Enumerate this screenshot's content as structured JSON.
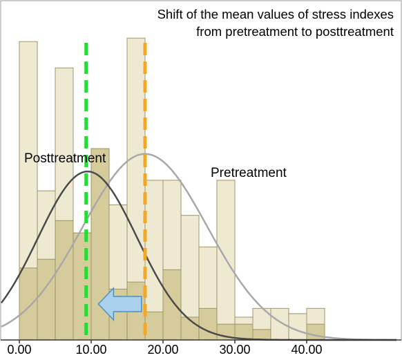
{
  "chart_data": {
    "type": "bar",
    "title_lines": [
      "Shift of the mean values of stress indexes",
      "from pretreatment to posttreatment"
    ],
    "xlabel": "",
    "ylabel": "",
    "x_tick_labels": [
      "0.00",
      "10.00",
      "20.00",
      "30.00",
      "40.00"
    ],
    "x_ticks": [
      0,
      10,
      20,
      30,
      40
    ],
    "xlim": [
      -2.5,
      52.5
    ],
    "ylim": [
      0,
      18
    ],
    "bin_width": 2.5,
    "bin_starts": [
      0,
      2.5,
      5,
      7.5,
      10,
      12.5,
      15,
      17.5,
      20,
      22.5,
      25,
      27.5,
      30,
      32.5,
      35,
      37.5,
      40
    ],
    "series": [
      {
        "name": "Pretreatment",
        "values": [
          17,
          8.5,
          15.5,
          6.1,
          10.9,
          7.7,
          17.2,
          9.1,
          9.1,
          7.1,
          5.3,
          9.1,
          1.3,
          1.8,
          1.8,
          1.5,
          1.8
        ],
        "mean": 17.5,
        "mean_line_color": "#f5a623",
        "bar_color": "#ece8cd",
        "curve_color": "#a8a8a8"
      },
      {
        "name": "Posttreatment",
        "values": [
          4.1,
          4.6,
          6.8,
          6.1,
          10.9,
          2.9,
          3.3,
          1.6,
          4.0,
          1.3,
          1.8,
          0.9,
          0.9,
          0.6,
          0,
          0,
          0.9
        ],
        "mean": 9.3,
        "mean_line_color": "#22dd33",
        "bar_color": "#d3c895",
        "curve_color": "#4a4a4a"
      }
    ],
    "pre_curve": {
      "mean": 17.5,
      "sd": 8.7,
      "peak": 10.6
    },
    "post_curve": {
      "mean": 9.5,
      "sd": 6.9,
      "peak": 9.6
    },
    "shift_arrow": {
      "from": 17.0,
      "to": 11.0,
      "color": "#a9d1ee"
    },
    "grid": false,
    "legend": "none"
  }
}
